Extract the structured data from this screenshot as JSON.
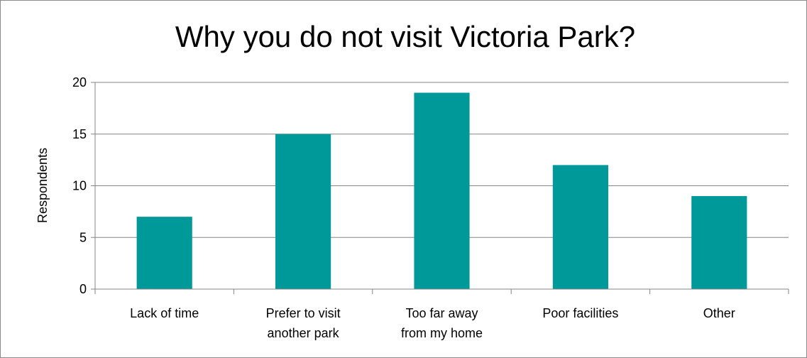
{
  "chart_data": {
    "type": "bar",
    "title": "Why you do not visit Victoria Park?",
    "xlabel": "",
    "ylabel": "Respondents",
    "categories": [
      [
        "Lack of time"
      ],
      [
        "Prefer to visit",
        "another park"
      ],
      [
        "Too far away",
        "from my home"
      ],
      [
        "Poor facilities"
      ],
      [
        "Other"
      ]
    ],
    "values": [
      7,
      15,
      19,
      12,
      9
    ],
    "ylim": [
      0,
      20
    ],
    "yticks": [
      0,
      5,
      10,
      15,
      20
    ],
    "grid": true,
    "legend": "none",
    "bar_color": "#009999",
    "grid_color": "#868686"
  }
}
